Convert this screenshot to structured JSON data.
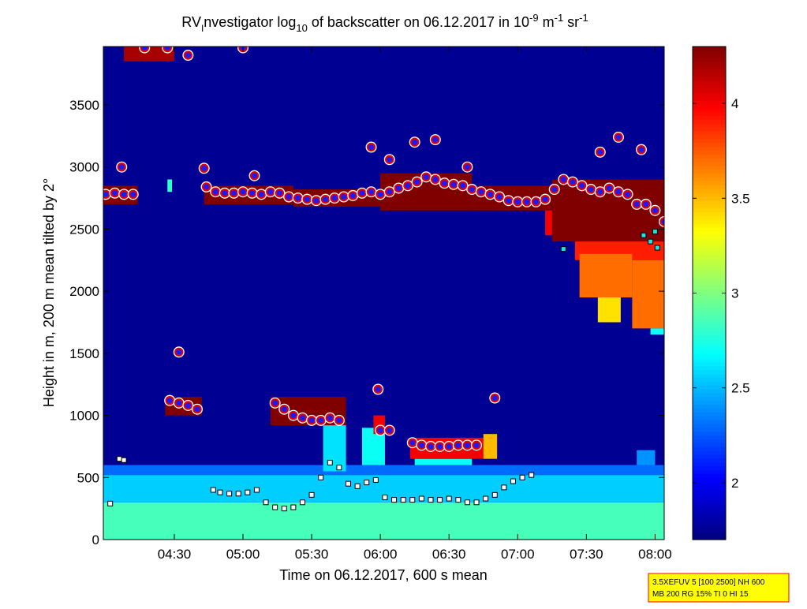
{
  "chart_data": {
    "type": "heatmap",
    "title_parts": [
      "RV",
      "I",
      "nvestigator log",
      "10",
      " of backscatter on 06.12.2017 in 10",
      "-9",
      " m",
      "-1",
      " sr",
      "-1"
    ],
    "xlabel": "Time on 06.12.2017, 600 s mean",
    "ylabel": "Height in m, 200 m mean tilted by 2°",
    "xlim": [
      239,
      484
    ],
    "ylim": [
      0,
      3970
    ],
    "xticks": [
      {
        "value": 270,
        "label": "04:30"
      },
      {
        "value": 300,
        "label": "05:00"
      },
      {
        "value": 330,
        "label": "05:30"
      },
      {
        "value": 360,
        "label": "06:00"
      },
      {
        "value": 390,
        "label": "06:30"
      },
      {
        "value": 420,
        "label": "07:00"
      },
      {
        "value": 450,
        "label": "07:30"
      },
      {
        "value": 480,
        "label": "08:00"
      }
    ],
    "yticks": [
      0,
      500,
      1000,
      1500,
      2000,
      2500,
      3000,
      3500
    ],
    "colormap": "jet",
    "clim": [
      1.7,
      4.3
    ],
    "cticks": [
      2,
      2.5,
      3,
      3.5,
      4
    ],
    "background": 1.75,
    "regions": [
      {
        "x": [
          239,
          484
        ],
        "y": [
          0,
          300
        ],
        "value": 2.85
      },
      {
        "x": [
          239,
          484
        ],
        "y": [
          300,
          520
        ],
        "value": 2.55
      },
      {
        "x": [
          239,
          484
        ],
        "y": [
          520,
          600
        ],
        "value": 2.3
      },
      {
        "x": [
          472,
          480
        ],
        "y": [
          600,
          720
        ],
        "value": 2.4
      },
      {
        "x": [
          239,
          254
        ],
        "y": [
          2700,
          2850
        ],
        "value": 4.3
      },
      {
        "x": [
          283,
          322
        ],
        "y": [
          2700,
          2850
        ],
        "value": 4.3
      },
      {
        "x": [
          322,
          360
        ],
        "y": [
          2680,
          2820
        ],
        "value": 4.3
      },
      {
        "x": [
          360,
          400
        ],
        "y": [
          2650,
          2950
        ],
        "value": 4.3
      },
      {
        "x": [
          400,
          435
        ],
        "y": [
          2650,
          2850
        ],
        "value": 4.3
      },
      {
        "x": [
          432,
          445
        ],
        "y": [
          2450,
          2650
        ],
        "value": 4.0
      },
      {
        "x": [
          445,
          484
        ],
        "y": [
          2250,
          2500
        ],
        "value": 3.9
      },
      {
        "x": [
          447,
          470
        ],
        "y": [
          1950,
          2300
        ],
        "value": 3.7
      },
      {
        "x": [
          455,
          465
        ],
        "y": [
          1750,
          1950
        ],
        "value": 3.4
      },
      {
        "x": [
          470,
          484
        ],
        "y": [
          1700,
          2250
        ],
        "value": 3.7
      },
      {
        "x": [
          478,
          484
        ],
        "y": [
          1650,
          1700
        ],
        "value": 2.7
      },
      {
        "x": [
          435,
          484
        ],
        "y": [
          2400,
          2900
        ],
        "value": 4.3
      },
      {
        "x": [
          352,
          362
        ],
        "y": [
          600,
          900
        ],
        "value": 2.7
      },
      {
        "x": [
          335,
          345
        ],
        "y": [
          550,
          950
        ],
        "value": 2.6
      },
      {
        "x": [
          375,
          400
        ],
        "y": [
          600,
          650
        ],
        "value": 2.7
      },
      {
        "x": [
          266,
          282
        ],
        "y": [
          1000,
          1150
        ],
        "value": 4.3
      },
      {
        "x": [
          312,
          345
        ],
        "y": [
          920,
          1150
        ],
        "value": 4.3
      },
      {
        "x": [
          357,
          362
        ],
        "y": [
          850,
          1000
        ],
        "value": 4.0
      },
      {
        "x": [
          373,
          405
        ],
        "y": [
          650,
          820
        ],
        "value": 4.0
      },
      {
        "x": [
          405,
          411
        ],
        "y": [
          650,
          850
        ],
        "value": 3.5
      },
      {
        "x": [
          248,
          270
        ],
        "y": [
          3850,
          3970
        ],
        "value": 4.2
      },
      {
        "x": [
          267,
          269
        ],
        "y": [
          2800,
          2900
        ],
        "value": 2.8
      }
    ],
    "series": [
      {
        "marker": "circle",
        "color": "#1a1aff",
        "edge": "#e00000",
        "x": [
          240,
          244,
          248,
          252,
          284,
          288,
          292,
          296,
          300,
          304,
          308,
          312,
          316,
          320,
          324,
          328,
          332,
          336,
          340,
          344,
          348,
          352,
          356,
          360,
          364,
          368,
          372,
          376,
          380,
          384,
          388,
          392,
          396,
          400,
          404,
          408,
          412,
          416,
          420,
          424,
          428,
          432,
          436,
          440,
          444,
          448,
          452,
          456,
          460,
          464,
          468,
          472,
          476,
          480,
          484,
          247,
          283,
          305,
          356,
          364,
          375,
          384,
          398,
          456,
          464,
          474,
          257,
          267,
          276,
          300,
          272,
          268,
          272,
          276,
          280,
          314,
          318,
          322,
          326,
          330,
          334,
          338,
          342,
          359,
          360,
          364,
          374,
          378,
          382,
          386,
          390,
          394,
          398,
          402,
          410
        ],
        "y": [
          2780,
          2790,
          2780,
          2780,
          2840,
          2800,
          2790,
          2790,
          2800,
          2790,
          2780,
          2800,
          2790,
          2760,
          2750,
          2740,
          2730,
          2740,
          2750,
          2760,
          2770,
          2790,
          2800,
          2780,
          2800,
          2830,
          2850,
          2880,
          2920,
          2900,
          2870,
          2860,
          2850,
          2820,
          2800,
          2780,
          2760,
          2730,
          2720,
          2720,
          2720,
          2740,
          2820,
          2900,
          2880,
          2850,
          2820,
          2800,
          2830,
          2800,
          2780,
          2700,
          2700,
          2650,
          2560,
          3000,
          2990,
          2930,
          3160,
          3060,
          3200,
          3220,
          3000,
          3120,
          3240,
          3140,
          3960,
          3960,
          3900,
          3960,
          1510,
          1120,
          1100,
          1080,
          1050,
          1100,
          1050,
          1000,
          980,
          960,
          960,
          980,
          960,
          1210,
          880,
          880,
          780,
          760,
          750,
          750,
          750,
          760,
          760,
          760,
          1140
        ]
      },
      {
        "marker": "square",
        "color": "#ffffff",
        "edge": "#000000",
        "x": [
          242,
          246,
          248,
          287,
          290,
          294,
          298,
          302,
          306,
          310,
          314,
          318,
          322,
          326,
          330,
          334,
          338,
          342,
          346,
          350,
          354,
          358,
          362,
          366,
          370,
          374,
          378,
          382,
          386,
          390,
          394,
          398,
          402,
          406,
          410,
          414,
          418,
          422,
          426
        ],
        "y": [
          290,
          650,
          640,
          400,
          380,
          370,
          370,
          380,
          400,
          300,
          260,
          250,
          260,
          300,
          360,
          500,
          620,
          580,
          450,
          430,
          460,
          480,
          340,
          320,
          320,
          320,
          330,
          320,
          320,
          330,
          320,
          300,
          300,
          330,
          360,
          420,
          470,
          500,
          520
        ]
      },
      {
        "marker": "square",
        "color": "#20e0e0",
        "edge": "#000000",
        "x": [
          440,
          475,
          478,
          481,
          480
        ],
        "y": [
          2340,
          2450,
          2400,
          2350,
          2480
        ]
      }
    ],
    "annotation": [
      "3.5XEFUV 5 [100 2500] NH 600",
      "MB 200 RG 15% TI 0 HI 15"
    ]
  }
}
